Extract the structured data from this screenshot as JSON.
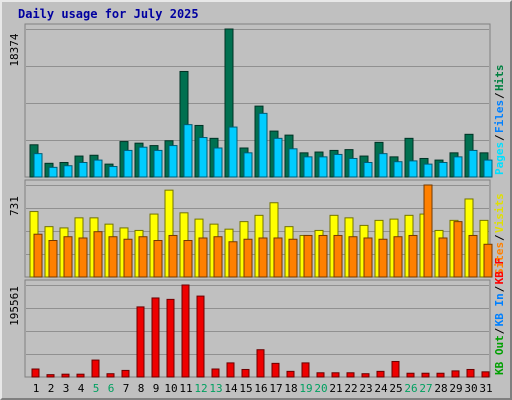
{
  "title": "Daily usage for July 2025",
  "chart_data": [
    {
      "type": "bar",
      "categories": [
        "1",
        "2",
        "3",
        "4",
        "5",
        "6",
        "7",
        "8",
        "9",
        "10",
        "11",
        "12",
        "13",
        "14",
        "15",
        "16",
        "17",
        "18",
        "19",
        "20",
        "21",
        "22",
        "23",
        "24",
        "25",
        "26",
        "27",
        "28",
        "29",
        "30",
        "31"
      ],
      "weekend_days": [
        "5",
        "6",
        "12",
        "13",
        "19",
        "20",
        "26",
        "27"
      ],
      "max_label": "18374",
      "legend": [
        {
          "name": "Hits",
          "color": "#008040"
        },
        {
          "name": "Files",
          "color": "#0080ff"
        },
        {
          "name": "Pages",
          "color": "#00e0ff"
        }
      ],
      "series": [
        {
          "name": "Hits",
          "color": "#007050",
          "values": [
            4000,
            1700,
            1800,
            2600,
            2700,
            1600,
            4400,
            4200,
            3900,
            4500,
            13100,
            6400,
            4800,
            18374,
            3600,
            8800,
            5700,
            5200,
            3000,
            3100,
            3300,
            3400,
            2600,
            4300,
            2500,
            4800,
            2300,
            2100,
            3000,
            5300,
            3000
          ]
        },
        {
          "name": "Pages",
          "color": "#00ccff",
          "values": [
            2900,
            1200,
            1400,
            1800,
            2100,
            1300,
            3300,
            3700,
            3300,
            3900,
            6500,
            4900,
            3600,
            6200,
            3000,
            7900,
            4800,
            3500,
            2500,
            2500,
            2800,
            2300,
            1800,
            2900,
            1900,
            2000,
            1600,
            1800,
            2500,
            3300,
            2100
          ]
        }
      ]
    },
    {
      "type": "bar",
      "categories": [
        "1",
        "2",
        "3",
        "4",
        "5",
        "6",
        "7",
        "8",
        "9",
        "10",
        "11",
        "12",
        "13",
        "14",
        "15",
        "16",
        "17",
        "18",
        "19",
        "20",
        "21",
        "22",
        "23",
        "24",
        "25",
        "26",
        "27",
        "28",
        "29",
        "30",
        "31"
      ],
      "max_label": "731",
      "legend": [
        {
          "name": "Visits",
          "color": "#e0e000"
        },
        {
          "name": "Sites",
          "color": "#ff8000"
        }
      ],
      "series": [
        {
          "name": "Visits",
          "color": "#ffff00",
          "values": [
            520,
            400,
            390,
            470,
            470,
            420,
            390,
            370,
            500,
            690,
            510,
            460,
            420,
            380,
            440,
            490,
            590,
            400,
            330,
            370,
            490,
            470,
            410,
            450,
            460,
            490,
            500,
            370,
            450,
            620,
            450
          ]
        },
        {
          "name": "Sites",
          "color": "#ff8000",
          "values": [
            340,
            290,
            320,
            310,
            360,
            320,
            300,
            320,
            290,
            330,
            290,
            310,
            320,
            280,
            300,
            310,
            310,
            300,
            330,
            330,
            330,
            320,
            310,
            300,
            320,
            330,
            731,
            310,
            440,
            330,
            260
          ]
        }
      ]
    },
    {
      "type": "bar",
      "categories": [
        "1",
        "2",
        "3",
        "4",
        "5",
        "6",
        "7",
        "8",
        "9",
        "10",
        "11",
        "12",
        "13",
        "14",
        "15",
        "16",
        "17",
        "18",
        "19",
        "20",
        "21",
        "22",
        "23",
        "24",
        "25",
        "26",
        "27",
        "28",
        "29",
        "30",
        "31"
      ],
      "max_label": "195561",
      "legend": [
        {
          "name": "KB F",
          "color": "#ff0000"
        },
        {
          "name": "KB In",
          "color": "#0080ff"
        },
        {
          "name": "KB Out",
          "color": "#00a000"
        }
      ],
      "series": [
        {
          "name": "KB F",
          "color": "#ee0000",
          "values": [
            17000,
            5000,
            6000,
            6000,
            36000,
            7000,
            14000,
            149000,
            168000,
            165000,
            195561,
            172000,
            17000,
            30000,
            16000,
            58000,
            29000,
            12000,
            30000,
            9000,
            9000,
            9000,
            7000,
            12000,
            33000,
            8000,
            8000,
            8000,
            13000,
            16000,
            11000
          ]
        }
      ]
    }
  ]
}
